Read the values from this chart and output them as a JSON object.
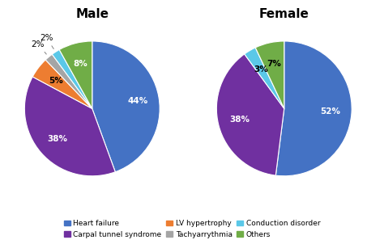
{
  "male": {
    "title": "Male",
    "labels": [
      "Heart failure",
      "Carpal tunnel syndrome",
      "LV hypertrophy",
      "Tachyarrythmia",
      "Conduction disorder",
      "Others"
    ],
    "values": [
      44,
      38,
      5,
      2,
      2,
      8
    ],
    "colors": [
      "#4472c4",
      "#7030a0",
      "#ed7d31",
      "#a5a5a5",
      "#5bc8e8",
      "#70ad47"
    ],
    "startangle": 90
  },
  "female": {
    "title": "Female",
    "labels": [
      "Heart failure",
      "Carpal tunnel syndrome",
      "Conduction disorder",
      "Others"
    ],
    "values": [
      52,
      38,
      3,
      7
    ],
    "colors": [
      "#4472c4",
      "#7030a0",
      "#5bc8e8",
      "#70ad47"
    ],
    "startangle": 90
  },
  "legend_items": [
    {
      "label": "Heart failure",
      "color": "#4472c4"
    },
    {
      "label": "Carpal tunnel syndrome",
      "color": "#7030a0"
    },
    {
      "label": "LV hypertrophy",
      "color": "#ed7d31"
    },
    {
      "label": "Tachyarrythmia",
      "color": "#a5a5a5"
    },
    {
      "label": "Conduction disorder",
      "color": "#5bc8e8"
    },
    {
      "label": "Others",
      "color": "#70ad47"
    }
  ],
  "bg_color": "#ffffff",
  "title_fontsize": 11,
  "pct_fontsize": 7.5,
  "legend_fontsize": 6.5
}
